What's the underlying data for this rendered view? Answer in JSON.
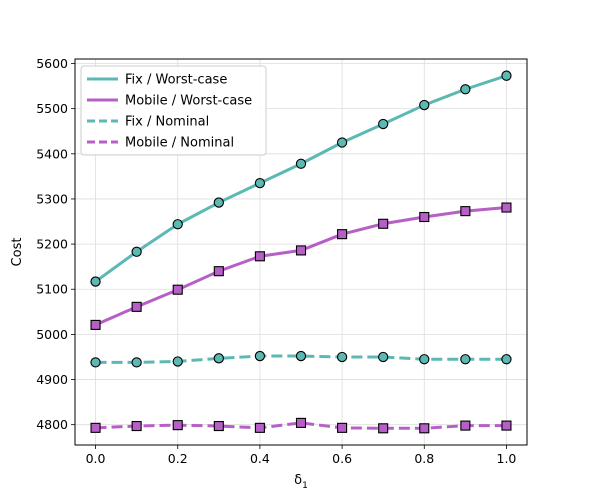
{
  "chart_data": {
    "type": "line",
    "xlabel": "δ",
    "xlabel_subscript": "1",
    "ylabel": "Cost",
    "xlim": [
      -0.05,
      1.05
    ],
    "ylim": [
      4755,
      5610
    ],
    "grid": true,
    "legend_position": "top-left",
    "x": [
      0.0,
      0.1,
      0.2,
      0.3,
      0.4,
      0.5,
      0.6,
      0.7,
      0.8,
      0.9,
      1.0
    ],
    "x_ticks": [
      0.0,
      0.2,
      0.4,
      0.6,
      0.8,
      1.0
    ],
    "x_tick_labels": [
      "0.0",
      "0.2",
      "0.4",
      "0.6",
      "0.8",
      "1.0"
    ],
    "y_ticks": [
      4800,
      4900,
      5000,
      5100,
      5200,
      5300,
      5400,
      5500,
      5600
    ],
    "y_tick_labels": [
      "4800",
      "4900",
      "5000",
      "5100",
      "5200",
      "5300",
      "5400",
      "5500",
      "5600"
    ],
    "series": [
      {
        "name": "Fix / Worst-case",
        "color": "#5cb8b2",
        "dash": "solid",
        "marker": "circle",
        "values": [
          5117,
          5183,
          5244,
          5292,
          5335,
          5378,
          5425,
          5466,
          5508,
          5543,
          5573
        ]
      },
      {
        "name": "Mobile / Worst-case",
        "color": "#b65fc6",
        "dash": "solid",
        "marker": "square",
        "values": [
          5021,
          5061,
          5099,
          5140,
          5173,
          5186,
          5222,
          5245,
          5260,
          5273,
          5281
        ]
      },
      {
        "name": "Fix / Nominal",
        "color": "#5cb8b2",
        "dash": "dashed",
        "marker": "circle",
        "values": [
          4938,
          4938,
          4940,
          4947,
          4952,
          4952,
          4950,
          4950,
          4945,
          4945,
          4945
        ]
      },
      {
        "name": "Mobile / Nominal",
        "color": "#b65fc6",
        "dash": "dashed",
        "marker": "square",
        "values": [
          4793,
          4797,
          4799,
          4797,
          4793,
          4804,
          4793,
          4792,
          4792,
          4798,
          4798
        ]
      }
    ]
  }
}
